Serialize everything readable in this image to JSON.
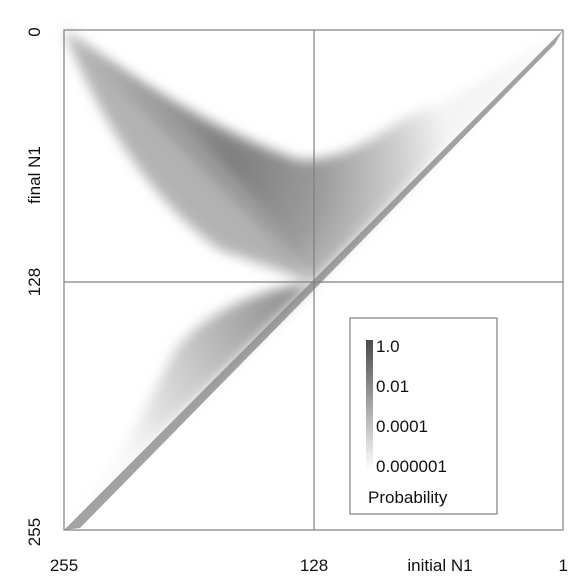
{
  "chart_data": {
    "type": "heatmap",
    "title": "",
    "xlabel": "initial N1",
    "ylabel": "final N1",
    "x_axis": {
      "reversed": true,
      "range": [
        255,
        1
      ],
      "ticks": [
        "255",
        "128",
        "1"
      ]
    },
    "y_axis": {
      "reversed": true,
      "range": [
        0,
        255
      ],
      "ticks": [
        "0",
        "128",
        "255"
      ]
    },
    "grid": true,
    "colorscale": {
      "title": "Probability",
      "scale": "log",
      "colors": [
        "#ffffff",
        "#4a4a4a"
      ],
      "range": [
        1e-06,
        1.0
      ],
      "ticks": [
        "1.0",
        "0.01",
        "0.0001",
        "0.000001"
      ]
    },
    "legend_placement": "bottom-right"
  }
}
